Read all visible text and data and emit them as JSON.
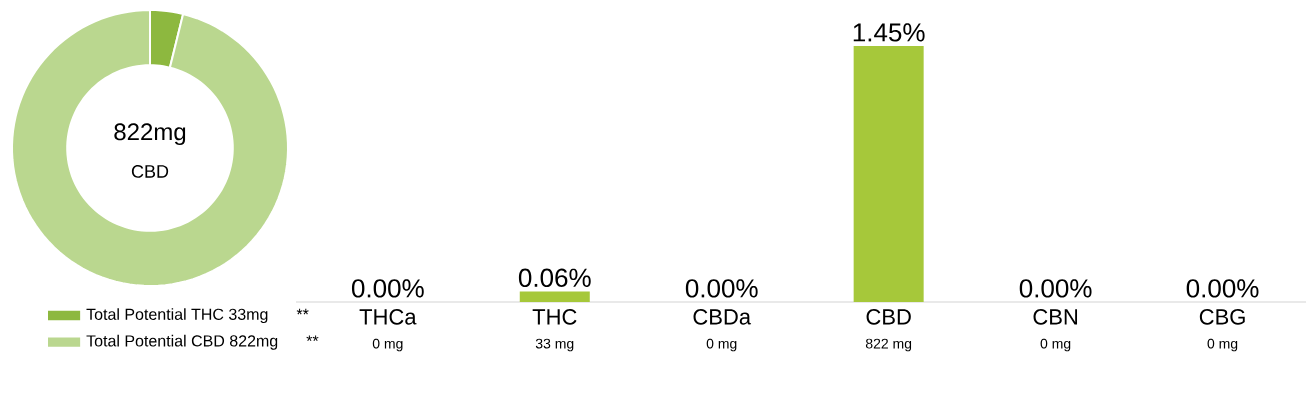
{
  "chart_data": [
    {
      "type": "donut",
      "categories": [
        "Total Potential THC 33mg",
        "Total Potential CBD 822mg"
      ],
      "values": [
        33,
        822
      ],
      "colors": [
        "#8db83f",
        "#bad78f"
      ],
      "legend": "bottom",
      "annotations": [
        "822mg",
        "CBD",
        "**",
        "**"
      ]
    },
    {
      "type": "bar",
      "categories": [
        "THCa",
        "THC",
        "CBDa",
        "CBD",
        "CBN",
        "CBG"
      ],
      "values": [
        0,
        0.06,
        0,
        1.45,
        0,
        0
      ],
      "color": "#a6c83a",
      "value_labels": [
        "0.00%",
        "0.06%",
        "0.00%",
        "1.45%",
        "0.00%",
        "0.00%"
      ],
      "annotations": [
        "0 mg",
        "33 mg",
        "0 mg",
        "822 mg",
        "0 mg",
        "0 mg"
      ]
    }
  ]
}
